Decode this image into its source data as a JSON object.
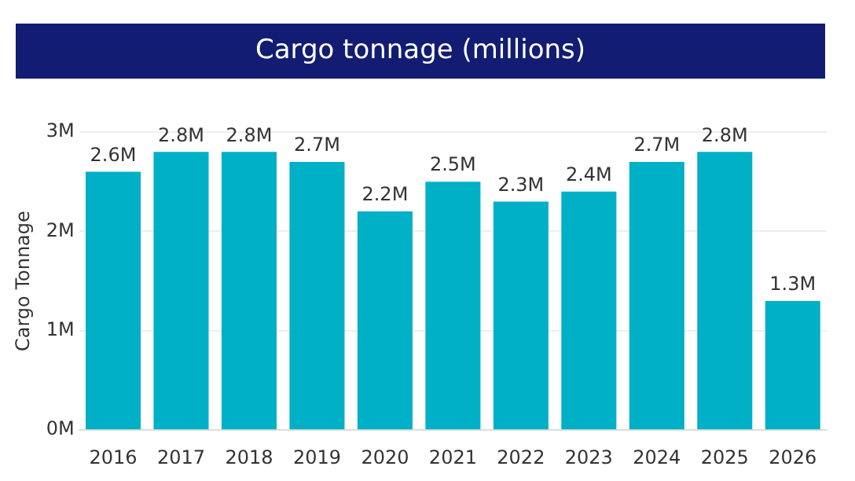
{
  "chart_data": {
    "type": "bar",
    "title": "Cargo tonnage (millions)",
    "ylabel": "Cargo Tonnage",
    "categories": [
      "2016",
      "2017",
      "2018",
      "2019",
      "2020",
      "2021",
      "2022",
      "2023",
      "2024",
      "2025",
      "2026"
    ],
    "values": [
      2.6,
      2.8,
      2.8,
      2.7,
      2.2,
      2.5,
      2.3,
      2.4,
      2.7,
      2.8,
      1.3
    ],
    "value_labels": [
      "2.6M",
      "2.8M",
      "2.8M",
      "2.7M",
      "2.2M",
      "2.5M",
      "2.3M",
      "2.4M",
      "2.7M",
      "2.8M",
      "1.3M"
    ],
    "color": "#00b0c6",
    "ylim": [
      0,
      3
    ],
    "yticks": [
      {
        "value": 0,
        "label": "0M"
      },
      {
        "value": 1,
        "label": "1M"
      },
      {
        "value": 2,
        "label": "2M"
      },
      {
        "value": 3,
        "label": "3M"
      }
    ],
    "grid": "y",
    "legend": false
  }
}
